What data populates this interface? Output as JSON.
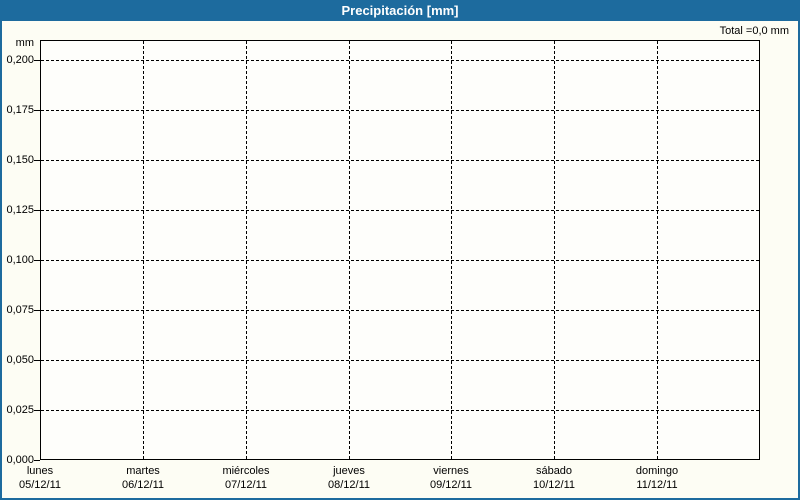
{
  "header": {
    "title": "Precipitación [mm]",
    "total_label": "Total =0,0 mm"
  },
  "colors": {
    "accent_blue": "#1d6b9e",
    "page_background": "#fdfdf4",
    "plot_background": "#fefefb",
    "grid_and_text": "#000000",
    "title_text": "#ffffff"
  },
  "chart_data": {
    "type": "bar",
    "title": "Precipitación [mm]",
    "ylabel_unit": "mm",
    "total_annotation": "Total =0,0 mm",
    "categories": [
      "lunes",
      "martes",
      "miércoles",
      "jueves",
      "viernes",
      "sábado",
      "domingo"
    ],
    "dates": [
      "05/12/11",
      "06/12/11",
      "07/12/11",
      "08/12/11",
      "09/12/11",
      "10/12/11",
      "11/12/11"
    ],
    "values": [
      0,
      0,
      0,
      0,
      0,
      0,
      0
    ],
    "y_ticks": [
      {
        "label": "0,200",
        "value": 0.2
      },
      {
        "label": "0,175",
        "value": 0.175
      },
      {
        "label": "0,150",
        "value": 0.15
      },
      {
        "label": "0,125",
        "value": 0.125
      },
      {
        "label": "0,100",
        "value": 0.1
      },
      {
        "label": "0,075",
        "value": 0.075
      },
      {
        "label": "0,050",
        "value": 0.05
      },
      {
        "label": "0,025",
        "value": 0.025
      },
      {
        "label": "0,000",
        "value": 0.0
      }
    ],
    "ylim": [
      0,
      0.21
    ],
    "grid": "dashed",
    "legend": "none"
  }
}
